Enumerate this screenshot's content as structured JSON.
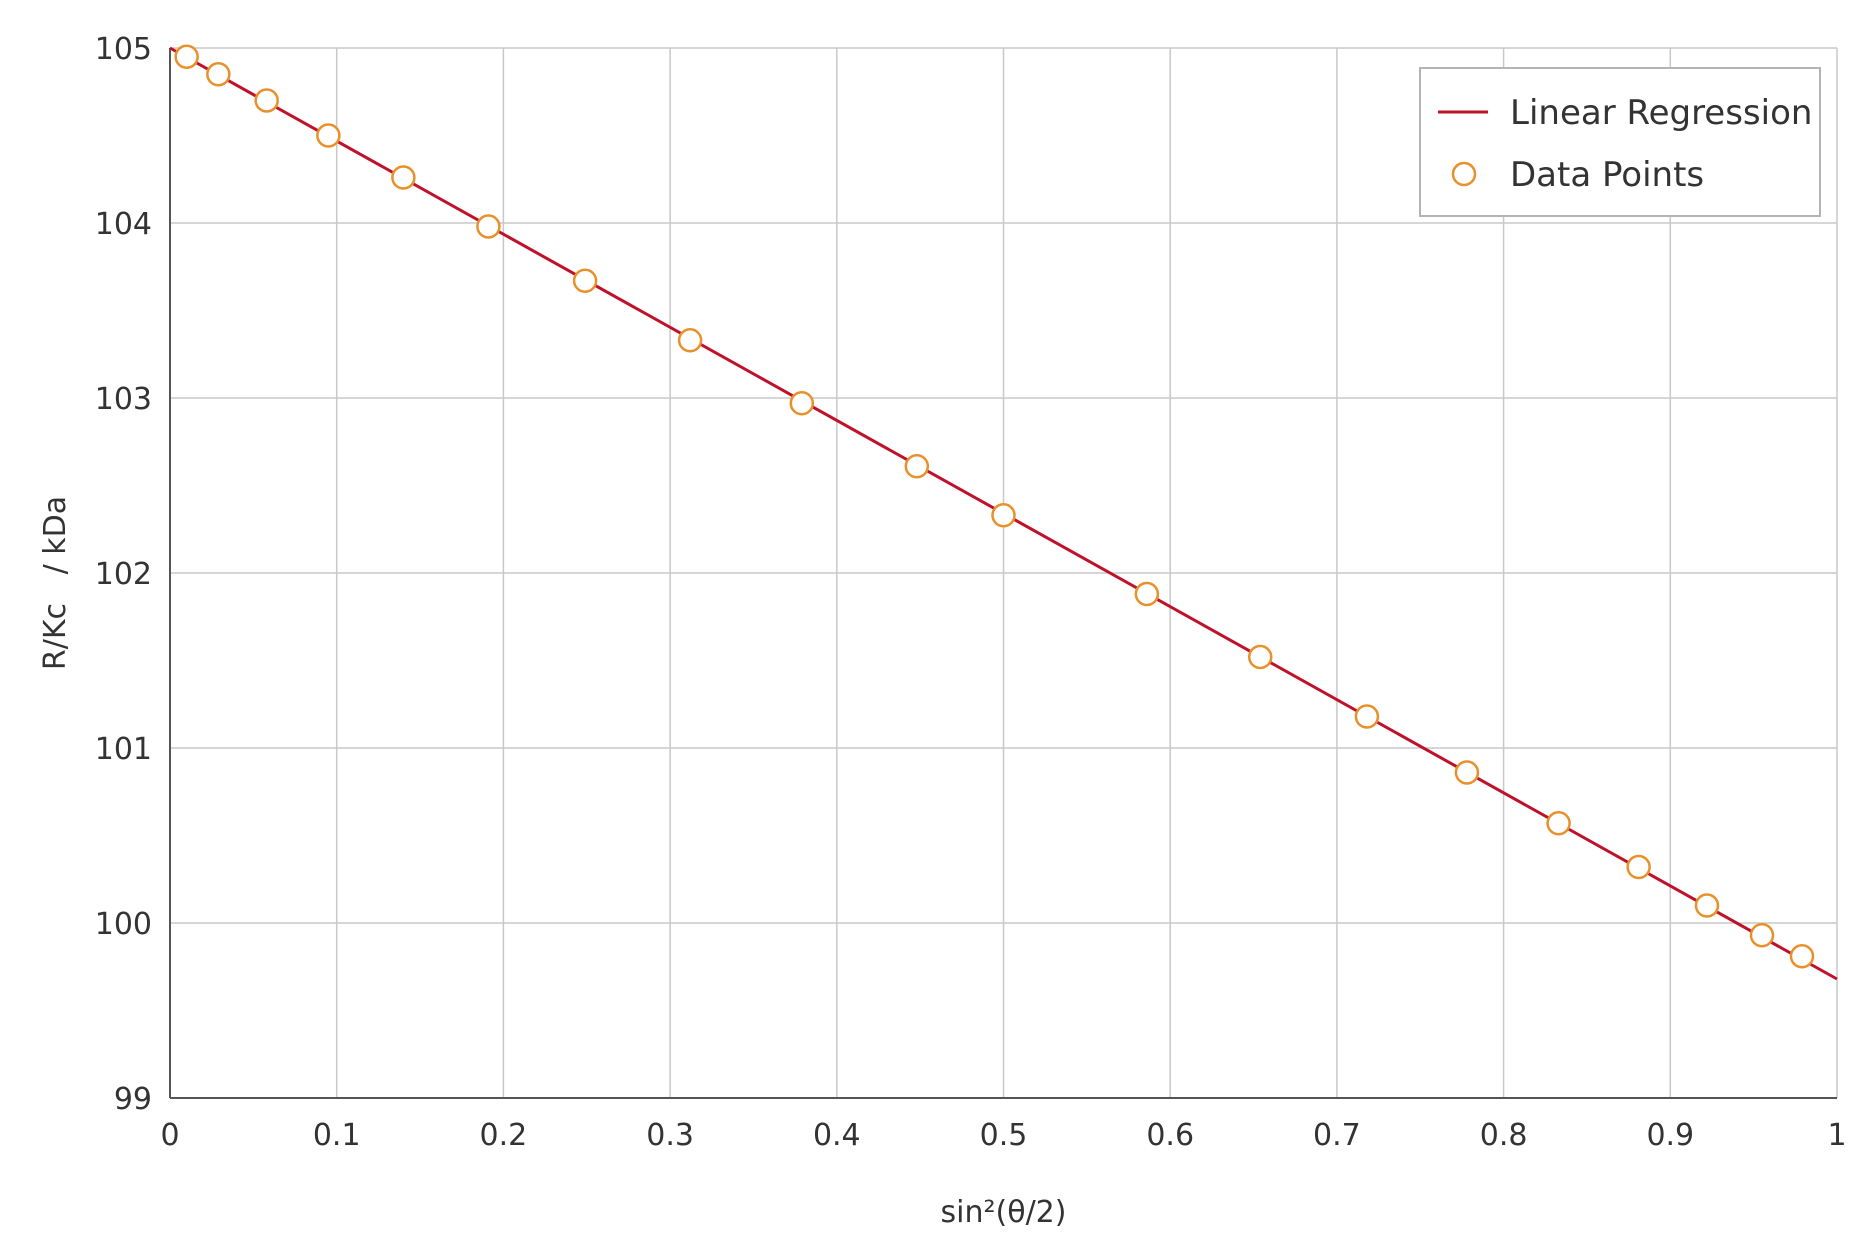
{
  "chart_data": {
    "type": "scatter",
    "title": "",
    "xlabel": "sin²(θ/2)",
    "ylabel": "R/Kc   / kDa",
    "xlim": [
      0,
      1
    ],
    "ylim": [
      99,
      105
    ],
    "xticks": [
      "0",
      "0.1",
      "0.2",
      "0.3",
      "0.4",
      "0.5",
      "0.6",
      "0.7",
      "0.8",
      "0.9",
      "1"
    ],
    "yticks": [
      "99",
      "100",
      "101",
      "102",
      "103",
      "104",
      "105"
    ],
    "grid": true,
    "legend_position": "top-right",
    "series": [
      {
        "name": "Linear Regression",
        "kind": "line",
        "color": "#c0112b",
        "x": [
          0,
          1
        ],
        "y": [
          105.0,
          99.68
        ]
      },
      {
        "name": "Data Points",
        "kind": "scatter",
        "marker": "open-circle",
        "color": "#e8902a",
        "x": [
          0.01,
          0.029,
          0.058,
          0.095,
          0.14,
          0.191,
          0.249,
          0.312,
          0.379,
          0.448,
          0.5,
          0.586,
          0.654,
          0.718,
          0.778,
          0.833,
          0.881,
          0.922,
          0.955,
          0.979
        ],
        "y": [
          104.95,
          104.85,
          104.7,
          104.5,
          104.26,
          103.98,
          103.67,
          103.33,
          102.97,
          102.61,
          102.33,
          101.88,
          101.52,
          101.18,
          100.86,
          100.57,
          100.32,
          100.1,
          99.93,
          99.81
        ]
      }
    ]
  }
}
